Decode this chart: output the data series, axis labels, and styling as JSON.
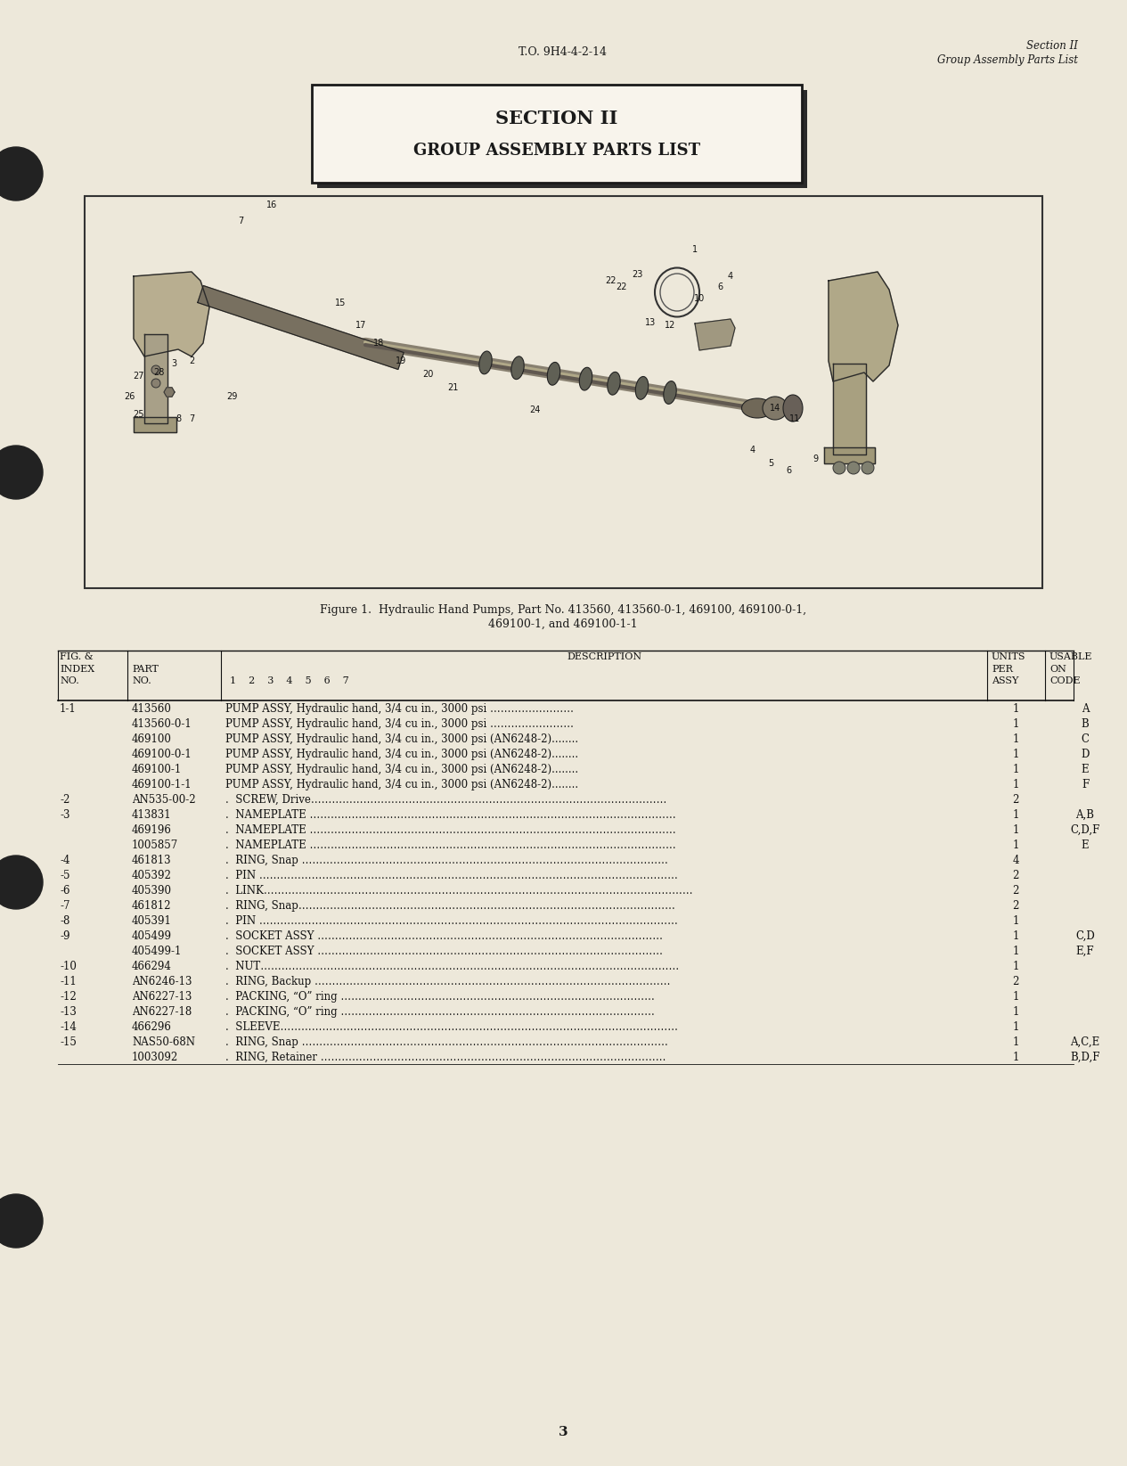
{
  "page_bg": "#ede8da",
  "top_center_text": "T.O. 9H4-4-2-14",
  "top_right_line1": "Section II",
  "top_right_line2": "Group Assembly Parts List",
  "section_box_title": "SECTION II",
  "section_box_subtitle": "GROUP ASSEMBLY PARTS LIST",
  "figure_caption_line1": "Figure 1.  Hydraulic Hand Pumps, Part No. 413560, 413560-0-1, 469100, 469100-0-1,",
  "figure_caption_line2": "469100-1, and 469100-1-1",
  "page_number": "3",
  "rows": [
    {
      "fig": "1-1",
      "part": "413560",
      "indent": 0,
      "desc": "PUMP ASSY, Hydraulic hand, 3/4 cu in., 3000 psi ……………………",
      "units": "1",
      "code": "A"
    },
    {
      "fig": "",
      "part": "413560-0-1",
      "indent": 0,
      "desc": "PUMP ASSY, Hydraulic hand, 3/4 cu in., 3000 psi ……………………",
      "units": "1",
      "code": "B"
    },
    {
      "fig": "",
      "part": "469100",
      "indent": 0,
      "desc": "PUMP ASSY, Hydraulic hand, 3/4 cu in., 3000 psi (AN6248-2)........",
      "units": "1",
      "code": "C"
    },
    {
      "fig": "",
      "part": "469100-0-1",
      "indent": 0,
      "desc": "PUMP ASSY, Hydraulic hand, 3/4 cu in., 3000 psi (AN6248-2)........",
      "units": "1",
      "code": "D"
    },
    {
      "fig": "",
      "part": "469100-1",
      "indent": 0,
      "desc": "PUMP ASSY, Hydraulic hand, 3/4 cu in., 3000 psi (AN6248-2)........",
      "units": "1",
      "code": "E"
    },
    {
      "fig": "",
      "part": "469100-1-1",
      "indent": 0,
      "desc": "PUMP ASSY, Hydraulic hand, 3/4 cu in., 3000 psi (AN6248-2)........",
      "units": "1",
      "code": "F"
    },
    {
      "fig": "-2",
      "part": "AN535-00-2",
      "indent": 1,
      "desc": "SCREW, Drive…………………………………………………………………………………………",
      "units": "2",
      "code": ""
    },
    {
      "fig": "-3",
      "part": "413831",
      "indent": 1,
      "desc": "NAMEPLATE ……………………………………………………………………………………………",
      "units": "1",
      "code": "A,B"
    },
    {
      "fig": "",
      "part": "469196",
      "indent": 1,
      "desc": "NAMEPLATE ……………………………………………………………………………………………",
      "units": "1",
      "code": "C,D,F"
    },
    {
      "fig": "",
      "part": "1005857",
      "indent": 1,
      "desc": "NAMEPLATE ……………………………………………………………………………………………",
      "units": "1",
      "code": "E"
    },
    {
      "fig": "-4",
      "part": "461813",
      "indent": 1,
      "desc": "RING, Snap ……………………………………………………………………………………………",
      "units": "4",
      "code": ""
    },
    {
      "fig": "-5",
      "part": "405392",
      "indent": 1,
      "desc": "PIN …………………………………………………………………………………………………………",
      "units": "2",
      "code": ""
    },
    {
      "fig": "-6",
      "part": "405390",
      "indent": 1,
      "desc": "LINK……………………………………………………………………………………………………………",
      "units": "2",
      "code": ""
    },
    {
      "fig": "-7",
      "part": "461812",
      "indent": 1,
      "desc": "RING, Snap………………………………………………………………………………………………",
      "units": "2",
      "code": ""
    },
    {
      "fig": "-8",
      "part": "405391",
      "indent": 1,
      "desc": "PIN …………………………………………………………………………………………………………",
      "units": "1",
      "code": ""
    },
    {
      "fig": "-9",
      "part": "405499",
      "indent": 1,
      "desc": "SOCKET ASSY ………………………………………………………………………………………",
      "units": "1",
      "code": "C,D"
    },
    {
      "fig": "",
      "part": "405499-1",
      "indent": 1,
      "desc": "SOCKET ASSY ………………………………………………………………………………………",
      "units": "1",
      "code": "E,F"
    },
    {
      "fig": "-10",
      "part": "466294",
      "indent": 1,
      "desc": "NUT…………………………………………………………………………………………………………",
      "units": "1",
      "code": ""
    },
    {
      "fig": "-11",
      "part": "AN6246-13",
      "indent": 1,
      "desc": "RING, Backup …………………………………………………………………………………………",
      "units": "2",
      "code": ""
    },
    {
      "fig": "-12",
      "part": "AN6227-13",
      "indent": 1,
      "desc": "PACKING, “O” ring ………………………………………………………………………………",
      "units": "1",
      "code": ""
    },
    {
      "fig": "-13",
      "part": "AN6227-18",
      "indent": 1,
      "desc": "PACKING, “O” ring ………………………………………………………………………………",
      "units": "1",
      "code": ""
    },
    {
      "fig": "-14",
      "part": "466296",
      "indent": 1,
      "desc": "SLEEVE……………………………………………………………………………………………………",
      "units": "1",
      "code": ""
    },
    {
      "fig": "-15",
      "part": "NAS50-68N",
      "indent": 1,
      "desc": "RING, Snap ……………………………………………………………………………………………",
      "units": "1",
      "code": "A,C,E"
    },
    {
      "fig": "",
      "part": "1003092",
      "indent": 1,
      "desc": "RING, Retainer ………………………………………………………………………………………",
      "units": "1",
      "code": "B,D,F"
    }
  ]
}
